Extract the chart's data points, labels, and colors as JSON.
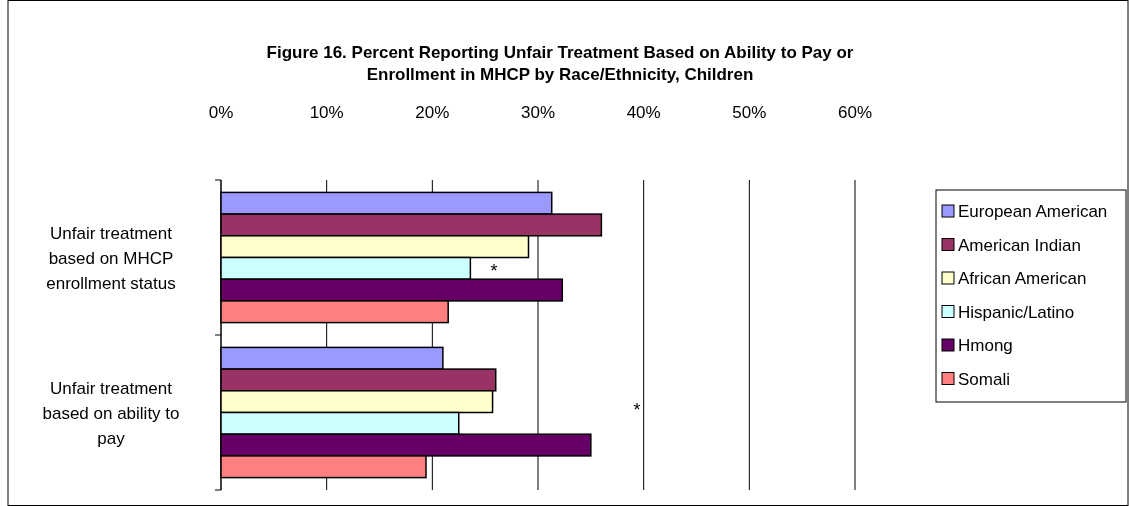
{
  "chart_data": {
    "type": "bar",
    "orientation": "horizontal",
    "title": "Figure 16. Percent Reporting Unfair Treatment Based on Ability to Pay or Enrollment in MHCP by Race/Ethnicity, Children",
    "categories": [
      "Unfair treatment based on MHCP enrollment status",
      "Unfair treatment based on ability to pay"
    ],
    "series": [
      {
        "name": "European American",
        "color": "#9999ff",
        "values": [
          31.3,
          21.0
        ]
      },
      {
        "name": "American Indian",
        "color": "#993366",
        "values": [
          36.0,
          26.0
        ]
      },
      {
        "name": "African American",
        "color": "#ffffcc",
        "values": [
          29.1,
          25.7
        ]
      },
      {
        "name": "Hispanic/Latino",
        "color": "#ccffff",
        "values": [
          23.6,
          22.5
        ]
      },
      {
        "name": "Hmong",
        "color": "#660066",
        "values": [
          32.3,
          35.0
        ]
      },
      {
        "name": "Somali",
        "color": "#ff8080",
        "values": [
          21.5,
          19.4
        ]
      }
    ],
    "xlim": [
      0,
      60
    ],
    "xticks": [
      {
        "value": 0,
        "label": "0%"
      },
      {
        "value": 10,
        "label": "10%"
      },
      {
        "value": 20,
        "label": "20%"
      },
      {
        "value": 30,
        "label": "30%"
      },
      {
        "value": 40,
        "label": "40%"
      },
      {
        "value": 50,
        "label": "50%"
      },
      {
        "value": 60,
        "label": "60%"
      }
    ],
    "grid": "x",
    "legend": "right",
    "annotations": [
      "*",
      "*"
    ]
  }
}
